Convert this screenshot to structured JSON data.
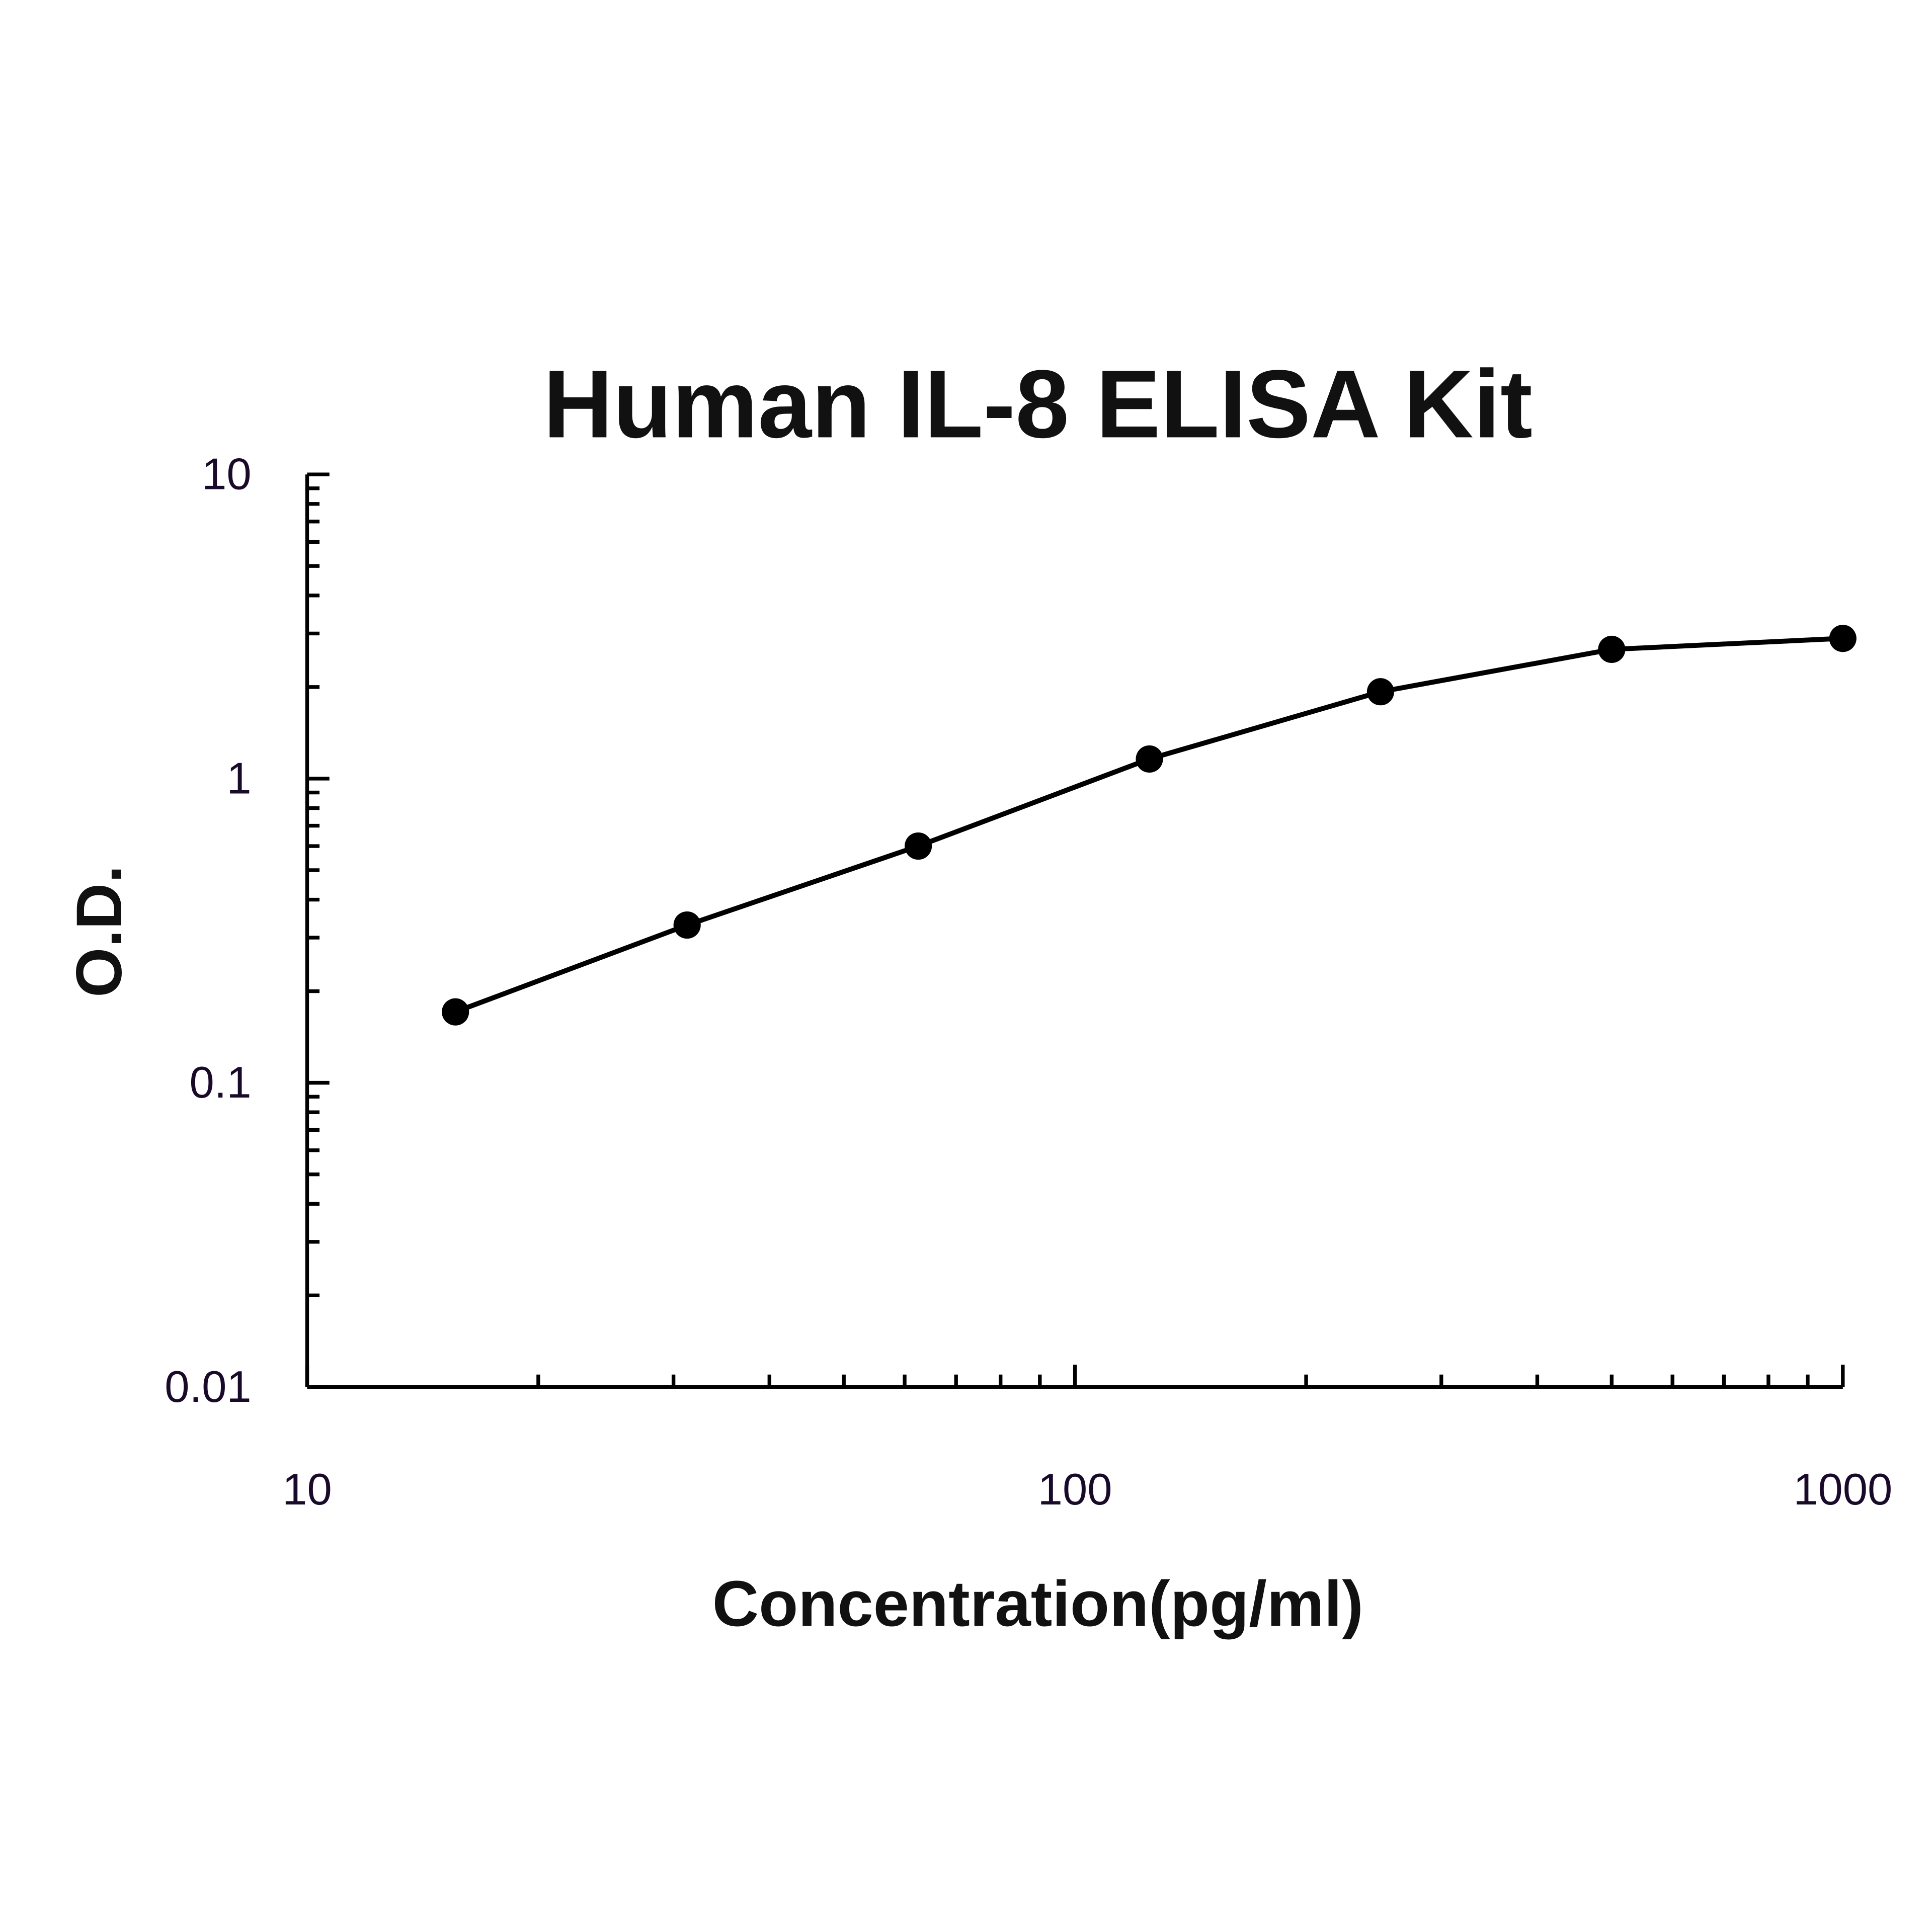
{
  "chart_data": {
    "type": "line",
    "title": "Human IL-8 ELISA Kit",
    "x_label": "Concentration(pg/ml)",
    "y_label": "O.D.",
    "x": [
      15.6,
      31.25,
      62.5,
      125,
      250,
      500,
      1000
    ],
    "series": [
      {
        "name": "Human IL-8",
        "color": "#000000",
        "values": [
          0.171,
          0.33,
          0.6,
          1.16,
          1.93,
          2.66,
          2.89
        ]
      }
    ],
    "xlim": [
      10,
      1000
    ],
    "xticks": [
      10,
      100,
      1000
    ],
    "ylim": [
      0.01,
      10
    ],
    "yticks": [
      0.01,
      0.1,
      1,
      10
    ],
    "x_log": true,
    "y_log": true,
    "grid": false
  }
}
